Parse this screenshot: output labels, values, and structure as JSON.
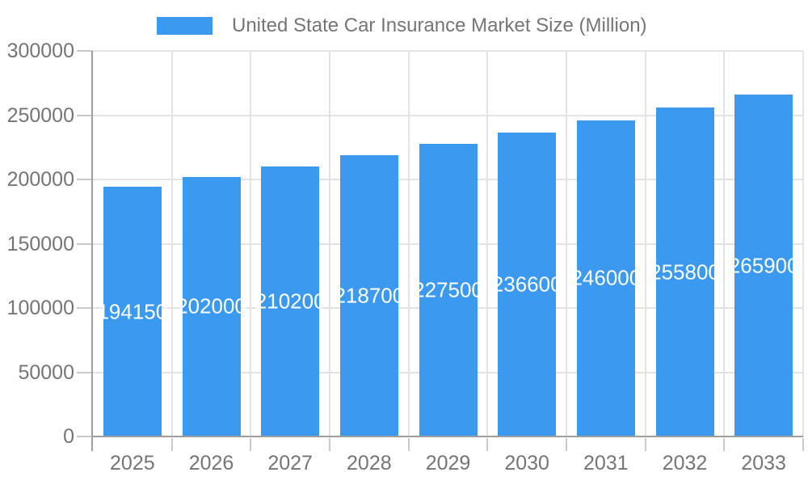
{
  "legend": {
    "label": "United State Car Insurance Market Size (Million)"
  },
  "chart_data": {
    "type": "bar",
    "title": "United State Car Insurance Market Size (Million)",
    "categories": [
      "2025",
      "2026",
      "2027",
      "2028",
      "2029",
      "2030",
      "2031",
      "2032",
      "2033"
    ],
    "values": [
      194150,
      202000,
      210200,
      218700,
      227500,
      236600,
      246000,
      255800,
      265900
    ],
    "series": [
      {
        "name": "United State Car Insurance Market Size (Million)",
        "values": [
          194150,
          202000,
          210200,
          218700,
          227500,
          236600,
          246000,
          255800,
          265900
        ]
      }
    ],
    "xlabel": "",
    "ylabel": "",
    "ylim": [
      0,
      300000
    ],
    "yticks": [
      0,
      50000,
      100000,
      150000,
      200000,
      250000,
      300000
    ],
    "grid": true,
    "legend_position": "top",
    "value_labels": "inside-center-white",
    "colors": {
      "bar": "#3b99ef",
      "value_label": "#ffffff",
      "axis_text": "#757575",
      "grid": "#e3e3e3",
      "axis_line": "#9e9e9e",
      "tick": "#c9c9c9",
      "background": "#ffffff"
    }
  }
}
